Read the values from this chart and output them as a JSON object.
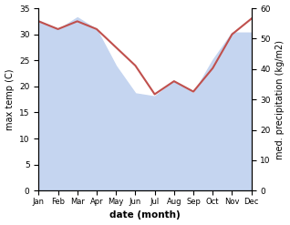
{
  "months": [
    "Jan",
    "Feb",
    "Mar",
    "Apr",
    "May",
    "Jun",
    "Jul",
    "Aug",
    "Sep",
    "Oct",
    "Nov",
    "Dec"
  ],
  "temperature": [
    32.5,
    31.0,
    32.5,
    31.0,
    27.5,
    24.0,
    18.5,
    21.0,
    19.0,
    23.5,
    30.0,
    33.0
  ],
  "precipitation": [
    56,
    53,
    57,
    53,
    41,
    32,
    31,
    36,
    32,
    43,
    52,
    52
  ],
  "temp_color": "#c0504d",
  "precip_fill_color": "#c5d5f0",
  "xlabel": "date (month)",
  "ylabel_left": "max temp (C)",
  "ylabel_right": "med. precipitation (kg/m2)",
  "ylim_left": [
    0,
    35
  ],
  "ylim_right": [
    0,
    60
  ],
  "yticks_left": [
    0,
    5,
    10,
    15,
    20,
    25,
    30,
    35
  ],
  "yticks_right": [
    0,
    10,
    20,
    30,
    40,
    50,
    60
  ],
  "background_color": "#ffffff",
  "line_width": 1.5
}
